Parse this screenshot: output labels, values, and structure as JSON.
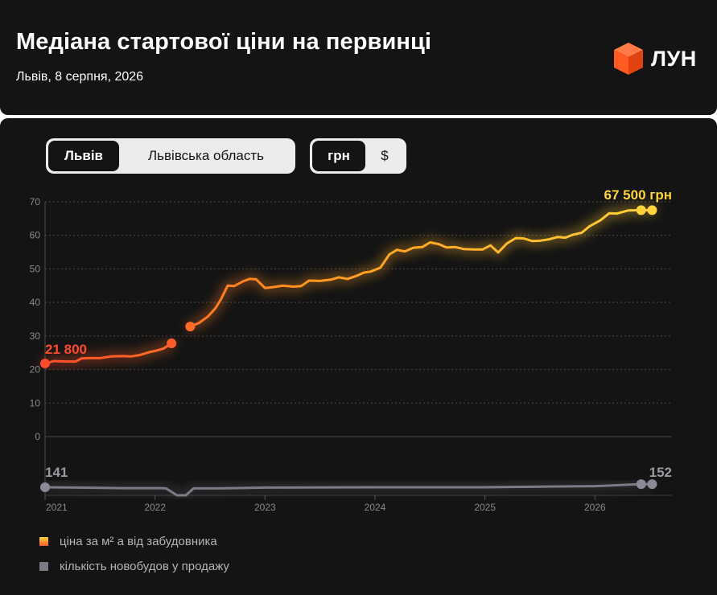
{
  "header": {
    "title": "Медіана стартової ціни на первинці",
    "subtitle": "Львів, 8 серпня, 2026",
    "logo_text": "ЛУН"
  },
  "filters": {
    "region": [
      "Львів",
      "Львівська область"
    ],
    "region_selected": "Львів",
    "currency": [
      "грн",
      "$"
    ],
    "currency_selected": "грн"
  },
  "legend": {
    "price": "ціна за м² а від забудовника",
    "count": "кількість новобудов у продажу"
  },
  "colors": {
    "start": "#ff4b2b",
    "mid": "#ff9a1f",
    "end": "#ffd43a",
    "count": "#7b7b87",
    "background": "#141414"
  },
  "chart_data": {
    "type": "line",
    "y_ticks": [
      "0",
      "10",
      "20",
      "30",
      "40",
      "50",
      "60",
      "70"
    ],
    "ylim": [
      0,
      70
    ],
    "x_ticks": [
      "2021",
      "2022",
      "2023",
      "2024",
      "2025",
      "2026"
    ],
    "xlim": [
      2021.0,
      2026.7
    ],
    "grid": true,
    "series": [
      {
        "key": "price",
        "start_label": "21 800",
        "end_label": "67 500 грн",
        "segments": [
          [
            [
              2021.0,
              21.8
            ],
            [
              2021.08,
              22.5
            ],
            [
              2021.2,
              22.4
            ],
            [
              2021.28,
              22.4
            ],
            [
              2021.33,
              23.3
            ],
            [
              2021.4,
              23.4
            ],
            [
              2021.5,
              23.4
            ],
            [
              2021.6,
              23.9
            ],
            [
              2021.7,
              24.0
            ],
            [
              2021.78,
              23.9
            ],
            [
              2021.86,
              24.3
            ],
            [
              2021.95,
              25.2
            ],
            [
              2022.02,
              25.7
            ],
            [
              2022.08,
              26.3
            ],
            [
              2022.15,
              27.8
            ]
          ],
          [
            [
              2022.32,
              32.8
            ],
            [
              2022.4,
              33.9
            ],
            [
              2022.48,
              35.8
            ],
            [
              2022.55,
              38.3
            ],
            [
              2022.6,
              41.0
            ],
            [
              2022.66,
              45.0
            ],
            [
              2022.72,
              44.9
            ],
            [
              2022.8,
              46.3
            ],
            [
              2022.86,
              47.0
            ],
            [
              2022.92,
              46.9
            ],
            [
              2023.0,
              44.3
            ],
            [
              2023.08,
              44.6
            ],
            [
              2023.16,
              45.0
            ],
            [
              2023.26,
              44.7
            ],
            [
              2023.33,
              44.9
            ],
            [
              2023.4,
              46.5
            ],
            [
              2023.5,
              46.4
            ],
            [
              2023.6,
              46.8
            ],
            [
              2023.67,
              47.5
            ],
            [
              2023.75,
              47.0
            ],
            [
              2023.83,
              47.9
            ],
            [
              2023.9,
              48.9
            ],
            [
              2023.96,
              49.2
            ],
            [
              2024.05,
              50.4
            ],
            [
              2024.13,
              54.3
            ],
            [
              2024.2,
              55.7
            ],
            [
              2024.27,
              55.2
            ],
            [
              2024.35,
              56.3
            ],
            [
              2024.43,
              56.5
            ],
            [
              2024.5,
              57.9
            ],
            [
              2024.58,
              57.4
            ],
            [
              2024.65,
              56.4
            ],
            [
              2024.73,
              56.5
            ],
            [
              2024.81,
              55.9
            ],
            [
              2024.9,
              55.8
            ],
            [
              2024.98,
              55.8
            ],
            [
              2025.05,
              57.0
            ],
            [
              2025.12,
              54.9
            ],
            [
              2025.2,
              57.6
            ],
            [
              2025.28,
              59.2
            ],
            [
              2025.35,
              59.1
            ],
            [
              2025.43,
              58.3
            ],
            [
              2025.5,
              58.4
            ],
            [
              2025.58,
              58.8
            ],
            [
              2025.66,
              59.5
            ],
            [
              2025.73,
              59.3
            ],
            [
              2025.8,
              60.2
            ],
            [
              2025.88,
              60.8
            ],
            [
              2025.95,
              62.7
            ],
            [
              2026.05,
              64.5
            ],
            [
              2026.13,
              66.6
            ],
            [
              2026.2,
              66.5
            ],
            [
              2026.3,
              67.4
            ],
            [
              2026.42,
              67.5
            ],
            [
              2026.52,
              67.5
            ]
          ]
        ],
        "end_points": [
          [
            2021.0,
            21.8
          ],
          [
            2022.15,
            27.8
          ],
          [
            2022.32,
            32.8
          ],
          [
            2026.42,
            67.5
          ],
          [
            2026.52,
            67.5
          ]
        ]
      },
      {
        "key": "count",
        "start_label": "141",
        "end_label": "152",
        "points": [
          [
            2021.0,
            141
          ],
          [
            2021.3,
            140
          ],
          [
            2021.7,
            138
          ],
          [
            2022.05,
            138
          ],
          [
            2022.1,
            137
          ],
          [
            2022.2,
            113
          ],
          [
            2022.28,
            113
          ],
          [
            2022.35,
            137
          ],
          [
            2022.6,
            137
          ],
          [
            2023.0,
            140
          ],
          [
            2024.0,
            141
          ],
          [
            2024.5,
            141
          ],
          [
            2025.0,
            141
          ],
          [
            2025.5,
            143
          ],
          [
            2026.0,
            145
          ],
          [
            2026.42,
            152
          ],
          [
            2026.52,
            152
          ]
        ]
      }
    ]
  }
}
